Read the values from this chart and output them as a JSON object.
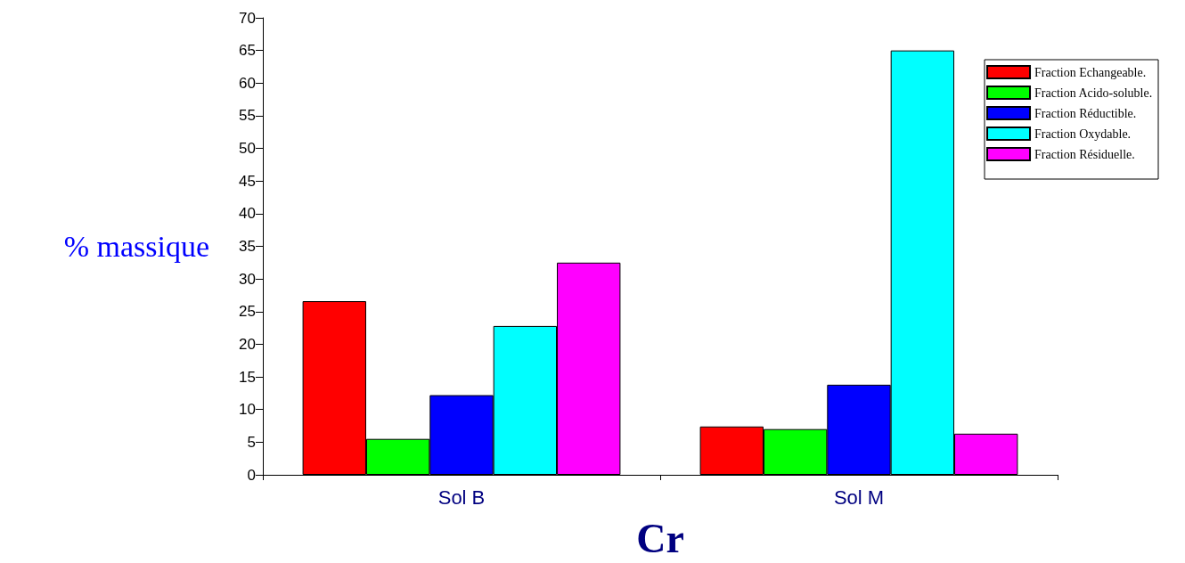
{
  "chart_data": {
    "type": "bar",
    "xlabel": "Cr",
    "ylabel": "% massique",
    "categories": [
      "Sol B",
      "Sol M"
    ],
    "series": [
      {
        "name": "Fraction Echangeable.",
        "color": "#ff0000",
        "values": [
          26.6,
          7.4
        ]
      },
      {
        "name": "Fraction Acido-soluble.",
        "color": "#00ff00",
        "values": [
          5.5,
          7.0
        ]
      },
      {
        "name": "Fraction Réductible.",
        "color": "#0000ff",
        "values": [
          12.2,
          13.8
        ]
      },
      {
        "name": "Fraction Oxydable.",
        "color": "#00ffff",
        "values": [
          22.8,
          65.0
        ]
      },
      {
        "name": "Fraction Résiduelle.",
        "color": "#ff00ff",
        "values": [
          32.5,
          6.3
        ]
      }
    ],
    "ylim": [
      0,
      70
    ],
    "yticks": [
      0,
      5,
      10,
      15,
      20,
      25,
      30,
      35,
      40,
      45,
      50,
      55,
      60,
      65,
      70
    ],
    "grid": false,
    "legend": "top right"
  }
}
